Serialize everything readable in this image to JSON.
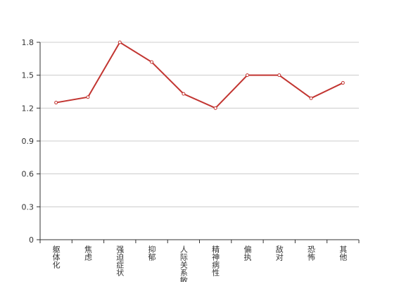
{
  "chart_data": {
    "type": "line",
    "categories": [
      "躯体化",
      "焦虑",
      "强迫症状",
      "抑郁",
      "人际关系敏感",
      "精神病性",
      "偏执",
      "敌对",
      "恐怖",
      "其他"
    ],
    "series": [
      {
        "color": "#c23531",
        "values": [
          1.25,
          1.3,
          1.8,
          1.62,
          1.33,
          1.2,
          1.5,
          1.5,
          1.29,
          1.43
        ]
      }
    ],
    "ylim": [
      0,
      1.8
    ],
    "yticks": [
      0,
      0.3,
      0.6,
      0.9,
      1.2,
      1.5,
      1.8
    ],
    "grid": true
  }
}
